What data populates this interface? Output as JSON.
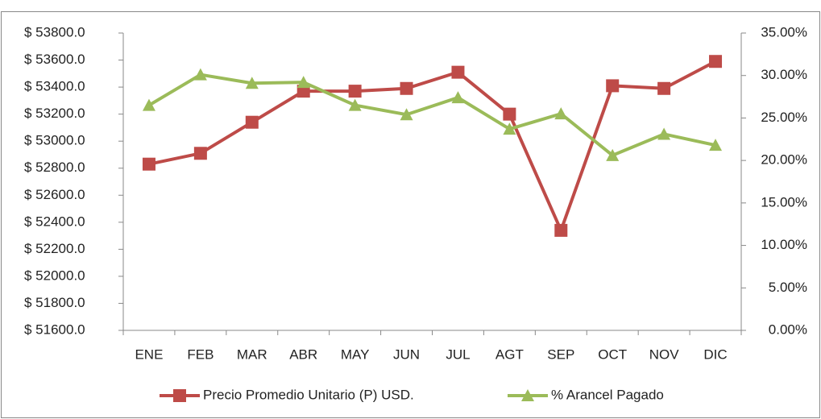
{
  "chart_data": {
    "type": "line",
    "categories": [
      "ENE",
      "FEB",
      "MAR",
      "ABR",
      "MAY",
      "JUN",
      "JUL",
      "AGT",
      "SEP",
      "OCT",
      "NOV",
      "DIC"
    ],
    "series": [
      {
        "name": "Precio Promedio Unitario (P) USD.",
        "color": "#be4b48",
        "marker": "square",
        "axis": "y",
        "values": [
          52830,
          52910,
          53140,
          53370,
          53370,
          53390,
          53510,
          53200,
          52340,
          53410,
          53390,
          53590
        ]
      },
      {
        "name": "% Arancel Pagado",
        "color": "#9bbb59",
        "marker": "triangle",
        "axis": "y2",
        "values": [
          26.5,
          30.1,
          29.1,
          29.2,
          26.5,
          25.4,
          27.4,
          23.7,
          25.5,
          20.6,
          23.1,
          21.8
        ]
      }
    ],
    "ylim": [
      51600,
      53800
    ],
    "yticks": [
      {
        "value": 51600,
        "label": "$ 51600.0"
      },
      {
        "value": 51800,
        "label": "$ 51800.0"
      },
      {
        "value": 52000,
        "label": "$ 52000.0"
      },
      {
        "value": 52200,
        "label": "$ 52200.0"
      },
      {
        "value": 52400,
        "label": "$ 52400.0"
      },
      {
        "value": 52600,
        "label": "$ 52600.0"
      },
      {
        "value": 52800,
        "label": "$ 52800.0"
      },
      {
        "value": 53000,
        "label": "$ 53000.0"
      },
      {
        "value": 53200,
        "label": "$ 53200.0"
      },
      {
        "value": 53400,
        "label": "$ 53400.0"
      },
      {
        "value": 53600,
        "label": "$ 53600.0"
      },
      {
        "value": 53800,
        "label": "$ 53800.0"
      }
    ],
    "y2lim": [
      0,
      35
    ],
    "y2ticks": [
      {
        "value": 0,
        "label": "0.00%"
      },
      {
        "value": 5,
        "label": "5.00%"
      },
      {
        "value": 10,
        "label": "10.00%"
      },
      {
        "value": 15,
        "label": "15.00%"
      },
      {
        "value": 20,
        "label": "20.00%"
      },
      {
        "value": 25,
        "label": "25.00%"
      },
      {
        "value": 30,
        "label": "30.00%"
      },
      {
        "value": 35,
        "label": "35.00%"
      }
    ],
    "grid": false,
    "legend": "bottom"
  }
}
